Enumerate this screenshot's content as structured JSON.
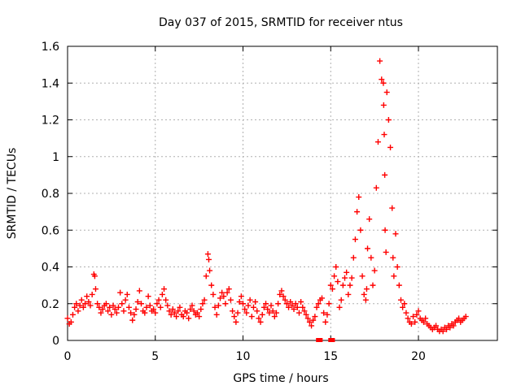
{
  "chart_data": {
    "type": "scatter",
    "title": "Day 037 of 2015, SRMTID for receiver ntus",
    "xlabel": "GPS time / hours",
    "ylabel": "SRMTID / TECUs",
    "xlim": [
      0,
      24.5
    ],
    "ylim": [
      0,
      1.6
    ],
    "xticks": [
      0,
      5,
      10,
      15,
      20
    ],
    "yticks": [
      0,
      0.2,
      0.4,
      0.6,
      0.8,
      1,
      1.2,
      1.4,
      1.6
    ],
    "ytick_labels": [
      "0",
      "0.2",
      "0.4",
      "0.6",
      "0.8",
      "1",
      "1.2",
      "1.4",
      "1.6"
    ],
    "grid": true,
    "marker": "+",
    "series": [
      {
        "name": "SRMTID",
        "color": "#ff0000",
        "x": [
          0.0,
          0.1,
          0.2,
          0.3,
          0.4,
          0.5,
          0.6,
          0.7,
          0.8,
          0.9,
          1.0,
          1.1,
          1.2,
          1.3,
          1.4,
          1.5,
          1.55,
          1.6,
          1.7,
          1.8,
          1.9,
          2.0,
          2.1,
          2.2,
          2.3,
          2.4,
          2.5,
          2.6,
          2.7,
          2.8,
          2.9,
          3.0,
          3.1,
          3.2,
          3.3,
          3.4,
          3.5,
          3.6,
          3.7,
          3.8,
          3.9,
          4.0,
          4.1,
          4.2,
          4.3,
          4.4,
          4.5,
          4.6,
          4.7,
          4.8,
          4.9,
          5.0,
          5.1,
          5.2,
          5.3,
          5.4,
          5.5,
          5.6,
          5.7,
          5.8,
          5.9,
          6.0,
          6.1,
          6.2,
          6.3,
          6.4,
          6.5,
          6.6,
          6.7,
          6.8,
          6.9,
          7.0,
          7.1,
          7.2,
          7.3,
          7.4,
          7.5,
          7.6,
          7.7,
          7.8,
          7.9,
          8.0,
          8.05,
          8.1,
          8.2,
          8.3,
          8.4,
          8.5,
          8.6,
          8.7,
          8.8,
          8.9,
          9.0,
          9.1,
          9.2,
          9.3,
          9.4,
          9.5,
          9.6,
          9.7,
          9.8,
          9.9,
          10.0,
          10.1,
          10.2,
          10.3,
          10.4,
          10.5,
          10.6,
          10.7,
          10.8,
          10.9,
          11.0,
          11.1,
          11.2,
          11.3,
          11.4,
          11.5,
          11.6,
          11.7,
          11.8,
          11.9,
          12.0,
          12.1,
          12.2,
          12.3,
          12.4,
          12.5,
          12.6,
          12.7,
          12.8,
          12.9,
          13.0,
          13.1,
          13.2,
          13.3,
          13.4,
          13.5,
          13.6,
          13.7,
          13.8,
          13.9,
          14.0,
          14.1,
          14.2,
          14.3,
          14.4,
          14.5,
          14.6,
          14.7,
          14.8,
          14.9,
          15.0,
          15.1,
          15.2,
          15.3,
          15.4,
          15.5,
          15.6,
          15.7,
          15.8,
          15.9,
          16.0,
          16.1,
          16.2,
          16.3,
          16.4,
          16.5,
          16.6,
          16.7,
          16.8,
          16.9,
          17.0,
          17.05,
          17.1,
          17.2,
          17.3,
          17.4,
          17.5,
          17.6,
          17.7,
          17.8,
          17.9,
          18.0,
          18.02,
          18.05,
          18.08,
          18.1,
          18.15,
          18.2,
          18.3,
          18.4,
          18.5,
          18.55,
          18.6,
          18.7,
          18.8,
          18.9,
          19.0,
          19.1,
          19.2,
          19.3,
          19.4,
          19.5,
          19.6,
          19.7,
          19.8,
          19.9,
          20.0,
          20.1,
          20.2,
          20.3,
          20.4,
          20.5,
          20.6,
          20.7,
          20.8,
          20.9,
          21.0,
          21.1,
          21.2,
          21.3,
          21.4,
          21.5,
          21.6,
          21.7,
          21.8,
          21.9,
          22.0,
          22.1,
          22.2,
          22.3,
          22.4,
          22.5,
          22.6,
          22.7,
          14.3,
          14.4,
          15.0,
          15.1
        ],
        "y": [
          0.12,
          0.09,
          0.1,
          0.14,
          0.18,
          0.2,
          0.16,
          0.19,
          0.22,
          0.18,
          0.2,
          0.24,
          0.21,
          0.19,
          0.25,
          0.36,
          0.35,
          0.28,
          0.2,
          0.18,
          0.15,
          0.17,
          0.19,
          0.2,
          0.16,
          0.18,
          0.14,
          0.19,
          0.17,
          0.15,
          0.18,
          0.26,
          0.2,
          0.16,
          0.22,
          0.25,
          0.18,
          0.15,
          0.11,
          0.14,
          0.17,
          0.21,
          0.27,
          0.2,
          0.16,
          0.15,
          0.18,
          0.24,
          0.19,
          0.16,
          0.17,
          0.15,
          0.2,
          0.22,
          0.18,
          0.25,
          0.28,
          0.22,
          0.19,
          0.16,
          0.14,
          0.17,
          0.15,
          0.13,
          0.16,
          0.18,
          0.14,
          0.13,
          0.16,
          0.15,
          0.12,
          0.17,
          0.19,
          0.16,
          0.14,
          0.15,
          0.13,
          0.17,
          0.2,
          0.22,
          0.35,
          0.47,
          0.44,
          0.38,
          0.3,
          0.25,
          0.18,
          0.14,
          0.19,
          0.23,
          0.26,
          0.24,
          0.2,
          0.26,
          0.28,
          0.22,
          0.16,
          0.13,
          0.1,
          0.15,
          0.21,
          0.24,
          0.2,
          0.17,
          0.15,
          0.19,
          0.22,
          0.13,
          0.18,
          0.21,
          0.16,
          0.12,
          0.1,
          0.14,
          0.18,
          0.2,
          0.17,
          0.15,
          0.19,
          0.16,
          0.13,
          0.15,
          0.2,
          0.25,
          0.27,
          0.24,
          0.22,
          0.2,
          0.18,
          0.21,
          0.19,
          0.17,
          0.2,
          0.18,
          0.15,
          0.21,
          0.18,
          0.16,
          0.14,
          0.12,
          0.1,
          0.08,
          0.11,
          0.13,
          0.18,
          0.2,
          0.22,
          0.23,
          0.15,
          0.1,
          0.14,
          0.2,
          0.3,
          0.28,
          0.35,
          0.4,
          0.32,
          0.18,
          0.22,
          0.3,
          0.34,
          0.37,
          0.25,
          0.3,
          0.34,
          0.45,
          0.55,
          0.7,
          0.78,
          0.6,
          0.35,
          0.25,
          0.22,
          0.28,
          0.5,
          0.66,
          0.45,
          0.3,
          0.38,
          0.83,
          1.08,
          1.52,
          1.42,
          1.4,
          1.28,
          1.12,
          0.9,
          0.6,
          0.48,
          1.35,
          1.2,
          1.05,
          0.72,
          0.45,
          0.35,
          0.58,
          0.4,
          0.3,
          0.22,
          0.18,
          0.2,
          0.15,
          0.12,
          0.1,
          0.09,
          0.13,
          0.1,
          0.14,
          0.16,
          0.12,
          0.11,
          0.1,
          0.12,
          0.09,
          0.08,
          0.07,
          0.06,
          0.07,
          0.08,
          0.06,
          0.05,
          0.06,
          0.05,
          0.07,
          0.06,
          0.08,
          0.07,
          0.09,
          0.08,
          0.1,
          0.11,
          0.12,
          0.1,
          0.11,
          0.12,
          0.13,
          0.0,
          0.0,
          0.0,
          0.0
        ]
      }
    ]
  }
}
